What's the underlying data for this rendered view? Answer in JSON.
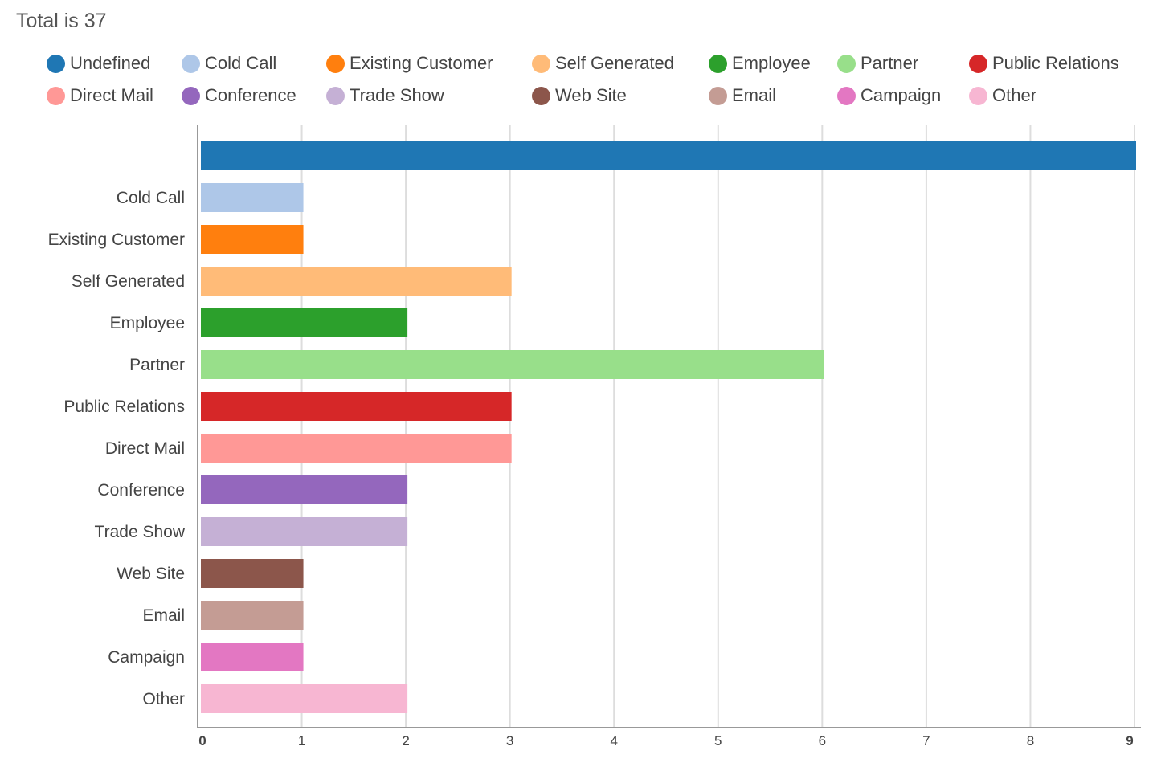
{
  "chart_data": {
    "type": "bar",
    "orientation": "horizontal",
    "title": "Total is 37",
    "categories": [
      "Undefined",
      "Cold Call",
      "Existing Customer",
      "Self Generated",
      "Employee",
      "Partner",
      "Public Relations",
      "Direct Mail",
      "Conference",
      "Trade Show",
      "Web Site",
      "Email",
      "Campaign",
      "Other"
    ],
    "axis_categories": [
      "",
      "Cold Call",
      "Existing Customer",
      "Self Generated",
      "Employee",
      "Partner",
      "Public Relations",
      "Direct Mail",
      "Conference",
      "Trade Show",
      "Web Site",
      "Email",
      "Campaign",
      "Other"
    ],
    "values": [
      9,
      1,
      1,
      3,
      2,
      6,
      3,
      3,
      2,
      2,
      1,
      1,
      1,
      2
    ],
    "colors": [
      "#1f77b4",
      "#aec7e8",
      "#ff7f0e",
      "#ffbb78",
      "#2ca02c",
      "#98df8a",
      "#d62728",
      "#ff9896",
      "#9467bd",
      "#c5b0d5",
      "#8c564b",
      "#c49c94",
      "#e377c2",
      "#f7b6d2"
    ],
    "xlim": [
      0,
      9
    ],
    "xticks": [
      0,
      1,
      2,
      3,
      4,
      5,
      6,
      7,
      8,
      9
    ],
    "grid": true,
    "legend_position": "top"
  }
}
